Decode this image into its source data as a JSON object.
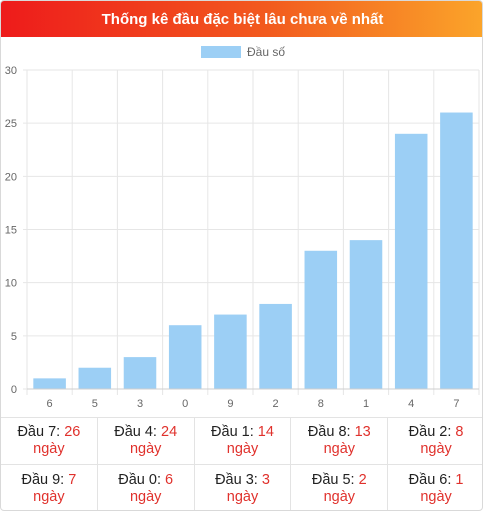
{
  "header": {
    "title": "Thống kê đầu đặc biệt lâu chưa về nhất"
  },
  "chart_data": {
    "type": "bar",
    "categories": [
      "6",
      "5",
      "3",
      "0",
      "9",
      "2",
      "8",
      "1",
      "4",
      "7"
    ],
    "series": [
      {
        "name": "Đầu số",
        "values": [
          1,
          2,
          3,
          6,
          7,
          8,
          13,
          14,
          24,
          26
        ],
        "color": "#9ccff5"
      }
    ],
    "ylim": [
      0,
      30
    ],
    "yticks": [
      "0",
      "5",
      "10",
      "15",
      "20",
      "25",
      "30"
    ],
    "legend": "top-center",
    "grid": true
  },
  "stats": {
    "rows": [
      [
        {
          "label": "Đầu 7:",
          "value": "26",
          "unit": "ngày"
        },
        {
          "label": "Đầu 4:",
          "value": "24",
          "unit": "ngày"
        },
        {
          "label": "Đầu 1:",
          "value": "14",
          "unit": "ngày"
        },
        {
          "label": "Đầu 8:",
          "value": "13",
          "unit": "ngày"
        },
        {
          "label": "Đầu 2:",
          "value": "8",
          "unit": "ngày"
        }
      ],
      [
        {
          "label": "Đầu 9:",
          "value": "7",
          "unit": "ngày"
        },
        {
          "label": "Đầu 0:",
          "value": "6",
          "unit": "ngày"
        },
        {
          "label": "Đầu 3:",
          "value": "3",
          "unit": "ngày"
        },
        {
          "label": "Đầu 5:",
          "value": "2",
          "unit": "ngày"
        },
        {
          "label": "Đầu 6:",
          "value": "1",
          "unit": "ngày"
        }
      ]
    ]
  }
}
